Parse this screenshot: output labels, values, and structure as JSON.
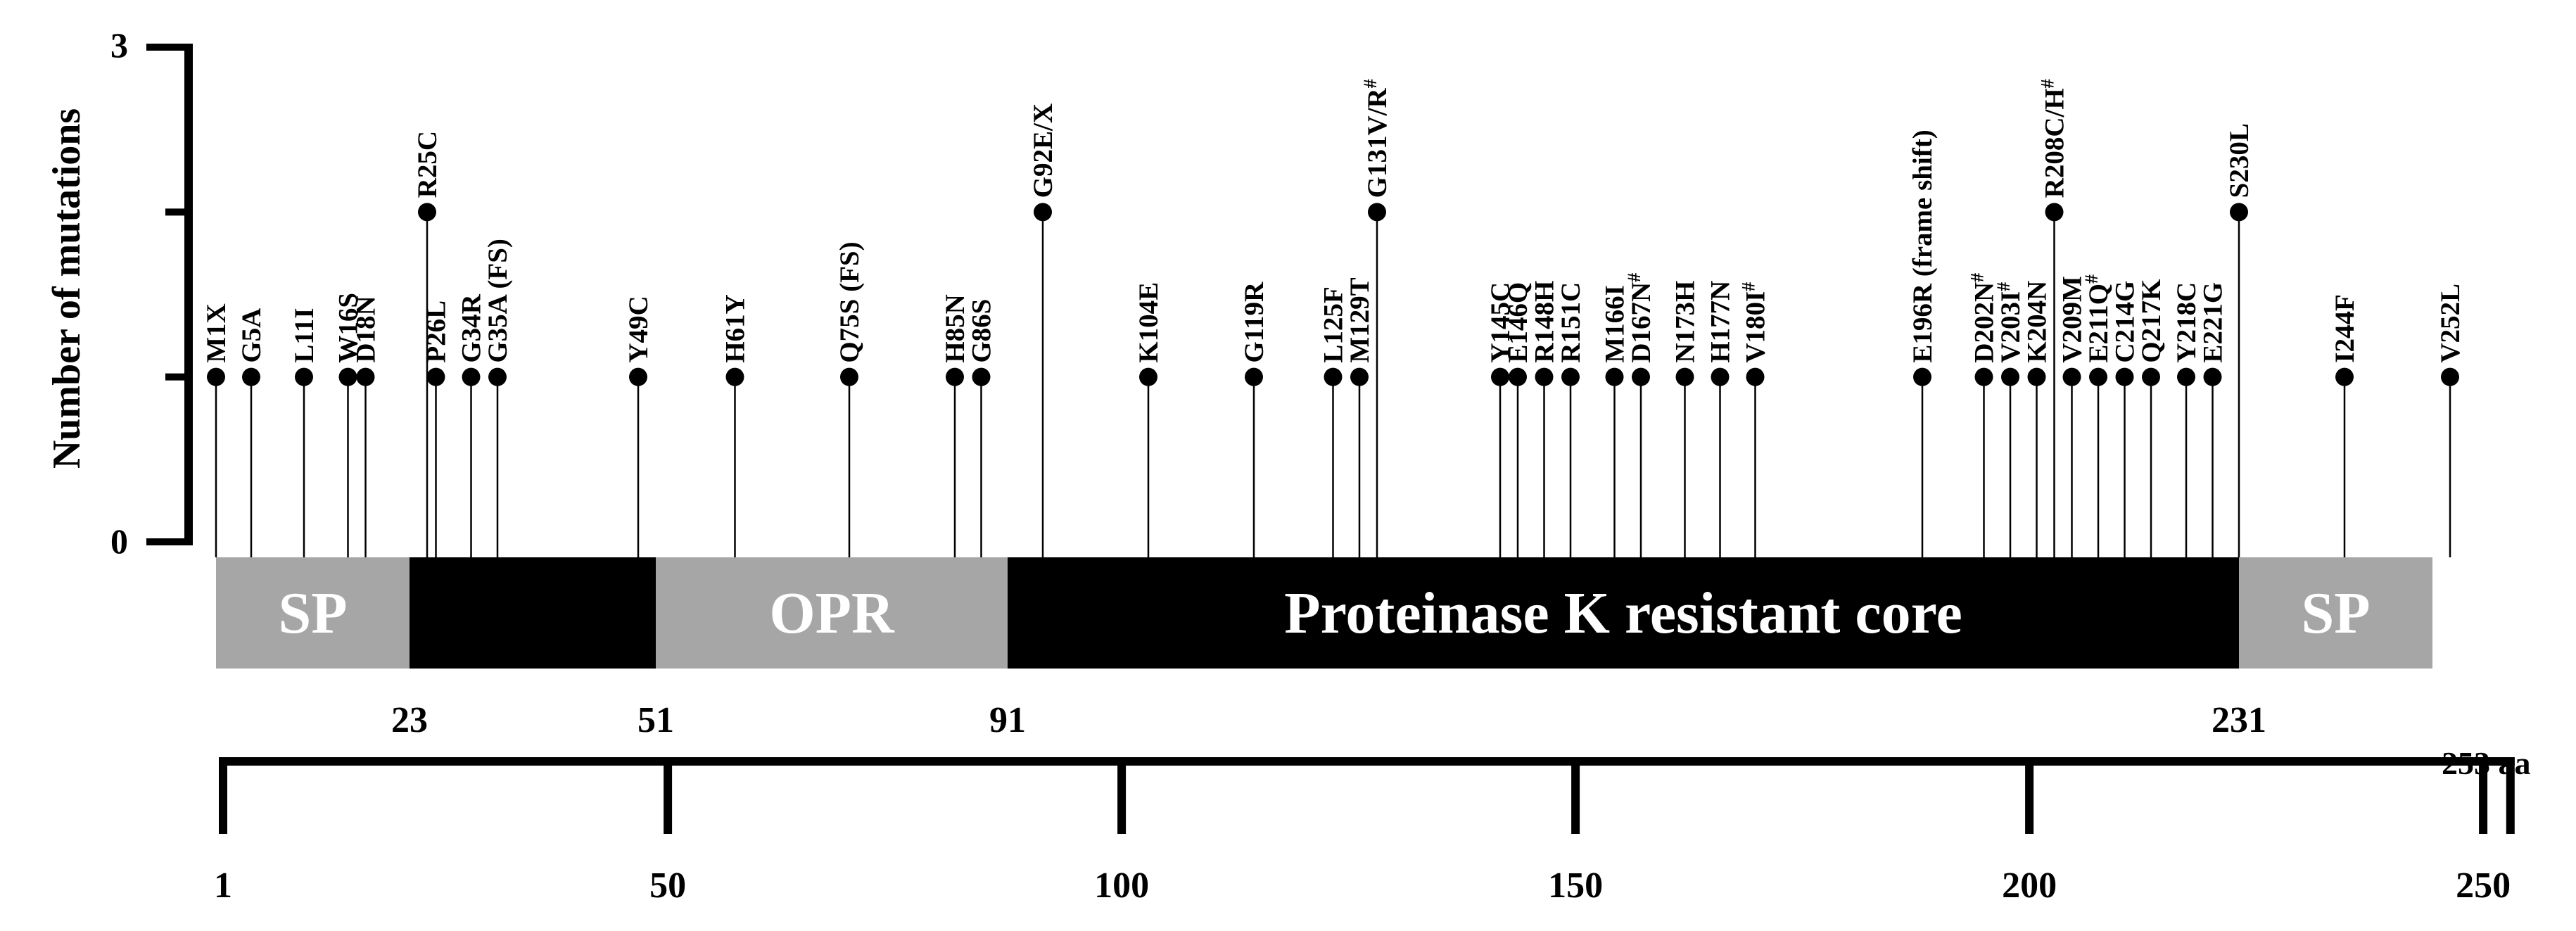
{
  "chart_data": {
    "type": "lollipop",
    "ylabel": "Number of mutations",
    "ylim": [
      0,
      3
    ],
    "ytick_labels": [
      "0",
      "3"
    ],
    "x_range": [
      1,
      253
    ],
    "x_unit_label": "253 aa",
    "xtick_labels": [
      "1",
      "50",
      "100",
      "150",
      "200",
      "250"
    ],
    "mutations": [
      {
        "label": "M1X",
        "pos": 1,
        "count": 1
      },
      {
        "label": "G5A",
        "pos": 5,
        "count": 1
      },
      {
        "label": "L11I",
        "pos": 11,
        "count": 1
      },
      {
        "label": "W16S",
        "pos": 16,
        "count": 1
      },
      {
        "label": "D18N",
        "pos": 18,
        "count": 1
      },
      {
        "label": "R25C",
        "pos": 25,
        "count": 2
      },
      {
        "label": "P26L",
        "pos": 26,
        "count": 1
      },
      {
        "label": "G34R",
        "pos": 30,
        "count": 1
      },
      {
        "label": "G35A (FS)",
        "pos": 33,
        "count": 1
      },
      {
        "label": "Y49C",
        "pos": 49,
        "count": 1
      },
      {
        "label": "H61Y",
        "pos": 60,
        "count": 1
      },
      {
        "label": "Q75S (FS)",
        "pos": 73,
        "count": 1
      },
      {
        "label": "H85N",
        "pos": 85,
        "count": 1
      },
      {
        "label": "G86S",
        "pos": 88,
        "count": 1
      },
      {
        "label": "G92E/X",
        "pos": 95,
        "count": 2
      },
      {
        "label": "K104E",
        "pos": 107,
        "count": 1
      },
      {
        "label": "G119R",
        "pos": 119,
        "count": 1
      },
      {
        "label": "L125F",
        "pos": 128,
        "count": 1
      },
      {
        "label": "M129T",
        "pos": 131,
        "count": 1
      },
      {
        "label": "G131V/R",
        "pos": 133,
        "count": 2,
        "note": "#"
      },
      {
        "label": "Y145C",
        "pos": 147,
        "count": 1
      },
      {
        "label": "E146Q",
        "pos": 149,
        "count": 1
      },
      {
        "label": "R148H",
        "pos": 152,
        "count": 1
      },
      {
        "label": "R151C",
        "pos": 155,
        "count": 1
      },
      {
        "label": "M166I",
        "pos": 160,
        "count": 1
      },
      {
        "label": "D167N",
        "pos": 163,
        "count": 1,
        "note": "#"
      },
      {
        "label": "N173H",
        "pos": 168,
        "count": 1
      },
      {
        "label": "H177N",
        "pos": 172,
        "count": 1
      },
      {
        "label": "V180I",
        "pos": 176,
        "count": 1,
        "note": "#"
      },
      {
        "label": "E196R (frame shift)",
        "pos": 195,
        "count": 1
      },
      {
        "label": "D202N",
        "pos": 202,
        "count": 1,
        "note": "#"
      },
      {
        "label": "V203I",
        "pos": 205,
        "count": 1,
        "note": "#"
      },
      {
        "label": "K204N",
        "pos": 208,
        "count": 1
      },
      {
        "label": "R208C/H",
        "pos": 210,
        "count": 2,
        "note": "#"
      },
      {
        "label": "V209M",
        "pos": 212,
        "count": 1
      },
      {
        "label": "E211Q",
        "pos": 215,
        "count": 1,
        "note": "#"
      },
      {
        "label": "C214G",
        "pos": 218,
        "count": 1
      },
      {
        "label": "Q217K",
        "pos": 221,
        "count": 1
      },
      {
        "label": "Y218C",
        "pos": 225,
        "count": 1
      },
      {
        "label": "E221G",
        "pos": 228,
        "count": 1
      },
      {
        "label": "S230L",
        "pos": 231,
        "count": 2
      },
      {
        "label": "I244F",
        "pos": 243,
        "count": 1
      },
      {
        "label": "V252L",
        "pos": 255,
        "count": 1
      }
    ],
    "domains": [
      {
        "label": "SP",
        "start": 1,
        "end": 23,
        "color": "#a6a6a6"
      },
      {
        "label": "",
        "start": 23,
        "end": 51,
        "color": "#000000"
      },
      {
        "label": "OPR",
        "start": 51,
        "end": 91,
        "color": "#a6a6a6"
      },
      {
        "label": "Proteinase K resistant core",
        "start": 91,
        "end": 231,
        "color": "#000000"
      },
      {
        "label": "SP",
        "start": 231,
        "end": 253,
        "color": "#a6a6a6"
      }
    ],
    "boundary_labels": [
      "23",
      "51",
      "91",
      "231"
    ],
    "note_symbol": "#"
  }
}
